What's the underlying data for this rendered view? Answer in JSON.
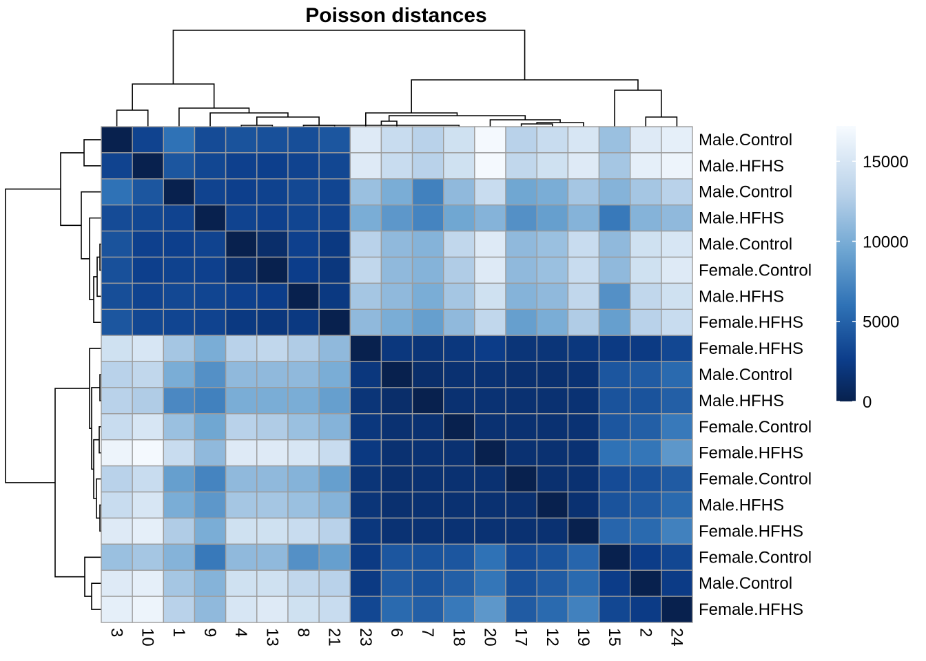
{
  "chart_data": {
    "type": "heatmap",
    "title": "Poisson distances",
    "row_labels": [
      "Male.Control",
      "Male.HFHS",
      "Male.Control",
      "Male.HFHS",
      "Male.Control",
      "Female.Control",
      "Male.HFHS",
      "Female.HFHS",
      "Female.HFHS",
      "Male.Control",
      "Male.HFHS",
      "Female.Control",
      "Female.HFHS",
      "Female.Control",
      "Male.HFHS",
      "Female.HFHS",
      "Female.Control",
      "Male.Control",
      "Female.HFHS"
    ],
    "col_labels": [
      "3",
      "10",
      "1",
      "9",
      "4",
      "13",
      "8",
      "21",
      "23",
      "6",
      "7",
      "18",
      "20",
      "17",
      "12",
      "19",
      "15",
      "2",
      "24"
    ],
    "values": [
      [
        0,
        3000,
        6000,
        3500,
        4000,
        3800,
        3700,
        4200,
        15500,
        14000,
        13000,
        14500,
        17000,
        13000,
        14000,
        15000,
        11500,
        15500,
        16000
      ],
      [
        3000,
        0,
        4200,
        3200,
        2800,
        2700,
        3000,
        3200,
        15500,
        14000,
        13000,
        14500,
        17000,
        13500,
        14500,
        15500,
        12000,
        16000,
        16500
      ],
      [
        6000,
        4200,
        0,
        3000,
        2700,
        2900,
        3300,
        3100,
        11500,
        10000,
        7000,
        11000,
        14000,
        9500,
        10000,
        12000,
        10500,
        12000,
        13000
      ],
      [
        3500,
        3200,
        3000,
        0,
        3000,
        2800,
        3100,
        3000,
        10000,
        8500,
        7200,
        9500,
        10500,
        8000,
        9000,
        10500,
        6500,
        10500,
        11000
      ],
      [
        4000,
        2800,
        2700,
        3000,
        0,
        1200,
        2800,
        2200,
        13000,
        11000,
        10500,
        13500,
        15500,
        11000,
        11500,
        14000,
        11000,
        14500,
        15000
      ],
      [
        3800,
        2700,
        2900,
        2800,
        1200,
        0,
        2600,
        2000,
        13500,
        11000,
        10500,
        12500,
        15500,
        11000,
        11500,
        14000,
        11000,
        14500,
        15500
      ],
      [
        3700,
        3000,
        3300,
        3100,
        2800,
        2600,
        0,
        2200,
        12000,
        11000,
        10000,
        12000,
        14500,
        10500,
        11000,
        13500,
        8000,
        13500,
        14500
      ],
      [
        4200,
        3200,
        3100,
        3000,
        2200,
        2000,
        2200,
        0,
        11000,
        10000,
        9000,
        11000,
        13500,
        9000,
        10000,
        12500,
        9000,
        13000,
        14000
      ],
      [
        14500,
        15000,
        12000,
        10000,
        13000,
        13500,
        12500,
        11000,
        0,
        2000,
        1800,
        2000,
        2500,
        1800,
        1800,
        2000,
        2300,
        2300,
        3200
      ],
      [
        13000,
        13500,
        10000,
        8000,
        11000,
        11000,
        11000,
        10000,
        2000,
        0,
        1200,
        1500,
        1600,
        1400,
        1400,
        1600,
        4200,
        4500,
        5500
      ],
      [
        13000,
        12500,
        7500,
        7000,
        10000,
        10000,
        10000,
        9000,
        1800,
        1200,
        0,
        1500,
        1600,
        1500,
        1500,
        1600,
        4000,
        4000,
        4800
      ],
      [
        14000,
        15000,
        11500,
        9500,
        13000,
        12500,
        11500,
        10500,
        2000,
        1500,
        1500,
        0,
        1500,
        1500,
        1500,
        1600,
        4200,
        4800,
        6500
      ],
      [
        16500,
        17000,
        14000,
        11000,
        15500,
        15500,
        15000,
        14000,
        2200,
        1500,
        1600,
        1500,
        0,
        1500,
        1500,
        1600,
        6000,
        6300,
        8500
      ],
      [
        13000,
        14000,
        9000,
        7200,
        11000,
        11000,
        10500,
        9000,
        1800,
        1400,
        1500,
        1500,
        1500,
        0,
        1400,
        1500,
        3500,
        3800,
        4500
      ],
      [
        14000,
        15000,
        10000,
        8500,
        12000,
        12000,
        11500,
        10500,
        1800,
        1400,
        1500,
        1500,
        1500,
        1400,
        0,
        1500,
        4000,
        4500,
        5500
      ],
      [
        15500,
        16000,
        12500,
        10000,
        14500,
        14500,
        14000,
        13000,
        2000,
        1600,
        1600,
        1600,
        1600,
        1500,
        1500,
        0,
        5200,
        5500,
        7000
      ],
      [
        11500,
        12000,
        10500,
        6500,
        11000,
        11000,
        8000,
        9000,
        2300,
        4200,
        4000,
        4200,
        6000,
        3500,
        4000,
        5200,
        0,
        2500,
        3200
      ],
      [
        15500,
        16000,
        12000,
        10500,
        14500,
        14500,
        13500,
        13000,
        2300,
        4500,
        4000,
        4800,
        6300,
        3800,
        4500,
        5500,
        2500,
        0,
        2400
      ],
      [
        16000,
        16500,
        13000,
        11000,
        15000,
        15500,
        14500,
        14000,
        3200,
        5500,
        4800,
        6500,
        8500,
        4500,
        5500,
        7000,
        3200,
        2400,
        0
      ]
    ],
    "legend": {
      "ticks": [
        0,
        5000,
        10000,
        15000
      ],
      "range": [
        0,
        17200
      ]
    },
    "colors": {
      "low": "#08214e",
      "mid": "#6fa6d2",
      "high": "#f7fbff",
      "cell_border": "#9c9c9c"
    }
  }
}
